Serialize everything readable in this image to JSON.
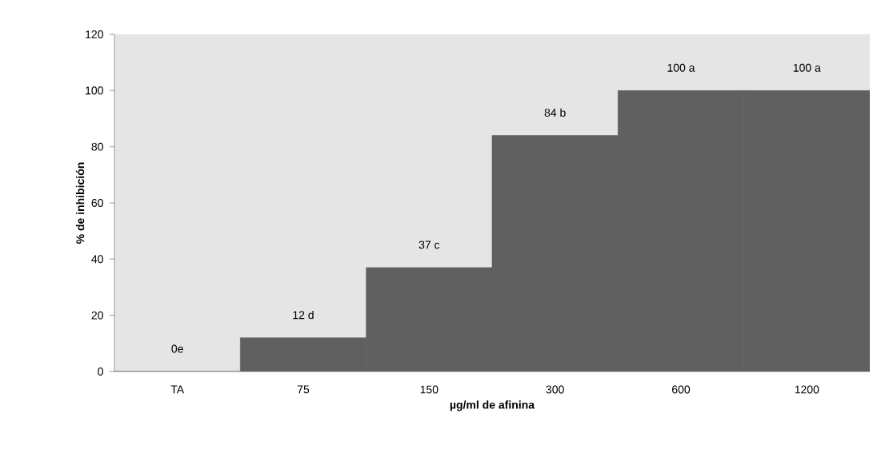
{
  "chart_data": {
    "type": "bar",
    "xlabel": "µg/ml de afinina",
    "ylabel": "% de inhibición",
    "categories": [
      "TA",
      "75",
      "150",
      "300",
      "600",
      "1200"
    ],
    "values": [
      0,
      12,
      37,
      84,
      100,
      100
    ],
    "value_labels": [
      "0e",
      "12 d",
      "37 c",
      "84 b",
      "100 a",
      "100 a"
    ],
    "color": "#606060",
    "ylim": [
      0,
      120
    ],
    "yticks": [
      0,
      20,
      40,
      60,
      80,
      100,
      120
    ]
  }
}
